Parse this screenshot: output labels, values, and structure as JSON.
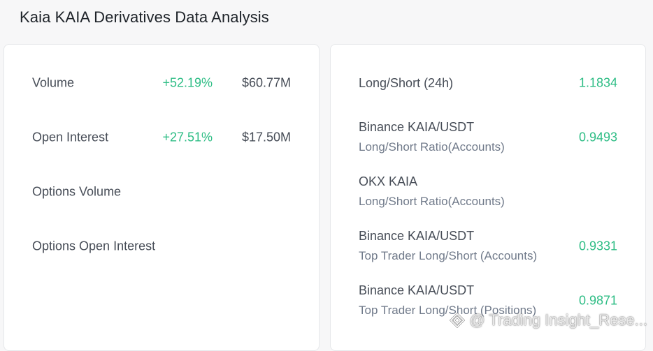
{
  "page": {
    "title": "Kaia KAIA Derivatives Data Analysis"
  },
  "left_panel": {
    "rows": [
      {
        "label": "Volume",
        "change": "+52.19%",
        "value": "$60.77M"
      },
      {
        "label": "Open Interest",
        "change": "+27.51%",
        "value": "$17.50M"
      },
      {
        "label": "Options Volume",
        "change": "",
        "value": ""
      },
      {
        "label": "Options Open Interest",
        "change": "",
        "value": ""
      }
    ]
  },
  "right_panel": {
    "rows": [
      {
        "label": "Long/Short (24h)",
        "sublabel": "",
        "value": "1.1834"
      },
      {
        "label": "Binance KAIA/USDT",
        "sublabel": "Long/Short Ratio(Accounts)",
        "value": "0.9493"
      },
      {
        "label": "OKX KAIA",
        "sublabel": "Long/Short Ratio(Accounts)",
        "value": ""
      },
      {
        "label": "Binance KAIA/USDT",
        "sublabel": "Top Trader Long/Short (Accounts)",
        "value": "0.9331"
      },
      {
        "label": "Binance KAIA/USDT",
        "sublabel": "Top Trader Long/Short (Positions)",
        "value": "0.9871"
      }
    ]
  },
  "watermark": {
    "text": "@ Trading Insight_Rese...",
    "icon": "diamond-logo-icon"
  },
  "colors": {
    "positive": "#2ebd85",
    "background": "#f7f7f8",
    "card": "#ffffff"
  }
}
